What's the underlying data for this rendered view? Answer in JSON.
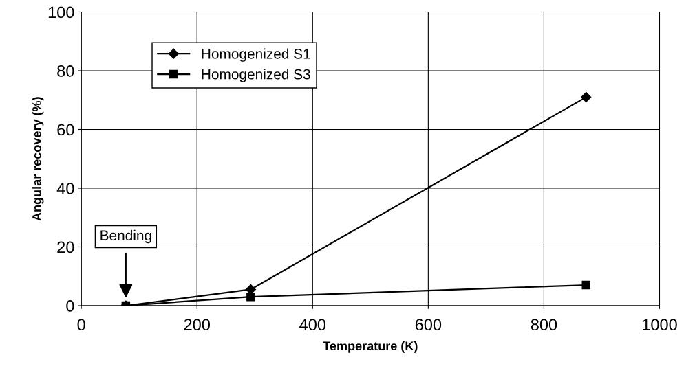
{
  "chart_data": {
    "type": "line",
    "xlabel": "Temperature (K)",
    "ylabel": "Angular recovery (%)",
    "x": [
      77,
      293,
      873
    ],
    "series": [
      {
        "name": "Homogenized S1",
        "color": "#000000",
        "marker": "diamond",
        "values": [
          0,
          5.5,
          71
        ]
      },
      {
        "name": "Homogenized S3",
        "color": "#000000",
        "marker": "square",
        "values": [
          0,
          3,
          7
        ]
      }
    ],
    "xlim": [
      0,
      1000
    ],
    "xticks": [
      0,
      200,
      400,
      600,
      800,
      1000
    ],
    "ylim": [
      0,
      100
    ],
    "yticks": [
      0,
      20,
      40,
      60,
      80,
      100
    ],
    "grid": true,
    "legend": "top left",
    "line_style": "solid",
    "annotations": [
      "Bending"
    ]
  }
}
